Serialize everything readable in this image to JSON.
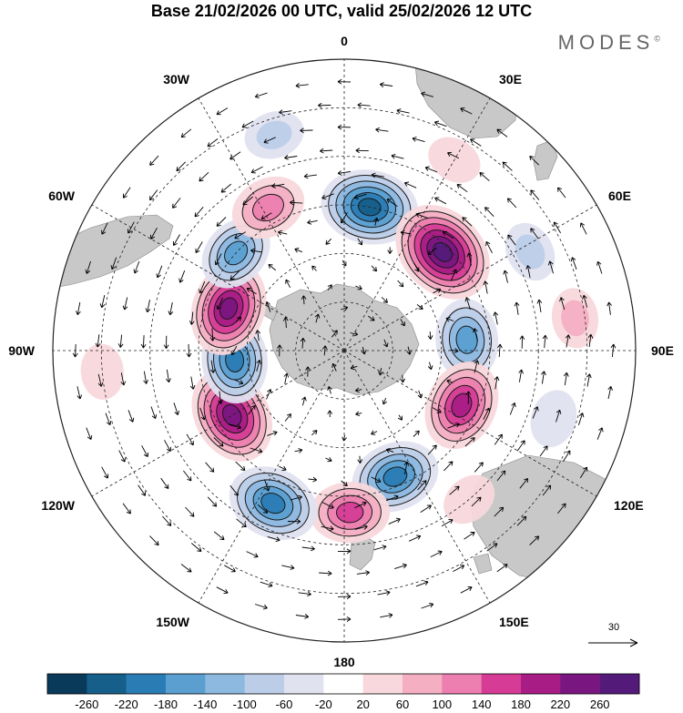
{
  "title": "Base 21/02/2026 00 UTC, valid 25/02/2026 12 UTC",
  "brand": "MODES",
  "brand_mark": "©",
  "longitude_labels": {
    "lon_0": "0",
    "lon_30e": "30E",
    "lon_60e": "60E",
    "lon_90e": "90E",
    "lon_120e": "120E",
    "lon_150e": "150E",
    "lon_180": "180",
    "lon_150w": "150W",
    "lon_120w": "120W",
    "lon_90w": "90W",
    "lon_60w": "60W",
    "lon_30w": "30W"
  },
  "reference_vector": {
    "label": "30"
  },
  "colorbar": {
    "labels": [
      "-260",
      "-220",
      "-180",
      "-140",
      "-100",
      "-60",
      "-20",
      "20",
      "60",
      "100",
      "140",
      "180",
      "220",
      "260"
    ],
    "colors": [
      "#0a3a5a",
      "#165f8a",
      "#2a7cb4",
      "#5a9fd0",
      "#8db8e0",
      "#bccde8",
      "#e0e2f0",
      "#ffffff",
      "#f8d8dc",
      "#f4afc3",
      "#ec7fb0",
      "#d63c96",
      "#a81c85",
      "#7a1680",
      "#541a7a"
    ]
  },
  "colors": {
    "land": "#c8c8c8",
    "grid": "#222222"
  },
  "anomaly_centers": [
    {
      "lon": 10,
      "lat": -45,
      "value": -230
    },
    {
      "lon": 45,
      "lat": -47,
      "value": 270
    },
    {
      "lon": 85,
      "lat": -52,
      "value": -160
    },
    {
      "lon": 115,
      "lat": -50,
      "value": 200
    },
    {
      "lon": 158,
      "lat": -48,
      "value": -190
    },
    {
      "lon": 178,
      "lat": -40,
      "value": 150
    },
    {
      "lon": -155,
      "lat": -38,
      "value": -200
    },
    {
      "lon": -120,
      "lat": -50,
      "value": 230
    },
    {
      "lon": -95,
      "lat": -56,
      "value": -180
    },
    {
      "lon": -70,
      "lat": -52,
      "value": 220
    },
    {
      "lon": -48,
      "lat": -45,
      "value": -140
    },
    {
      "lon": -28,
      "lat": -40,
      "value": 130
    },
    {
      "lon": -18,
      "lat": -20,
      "value": -60
    },
    {
      "lon": 62,
      "lat": -25,
      "value": -60
    },
    {
      "lon": 82,
      "lat": -18,
      "value": 60
    },
    {
      "lon": 108,
      "lat": -22,
      "value": -50
    },
    {
      "lon": 30,
      "lat": -22,
      "value": 35
    },
    {
      "lon": 140,
      "lat": -30,
      "value": 40
    },
    {
      "lon": -95,
      "lat": -15,
      "value": 40
    }
  ]
}
